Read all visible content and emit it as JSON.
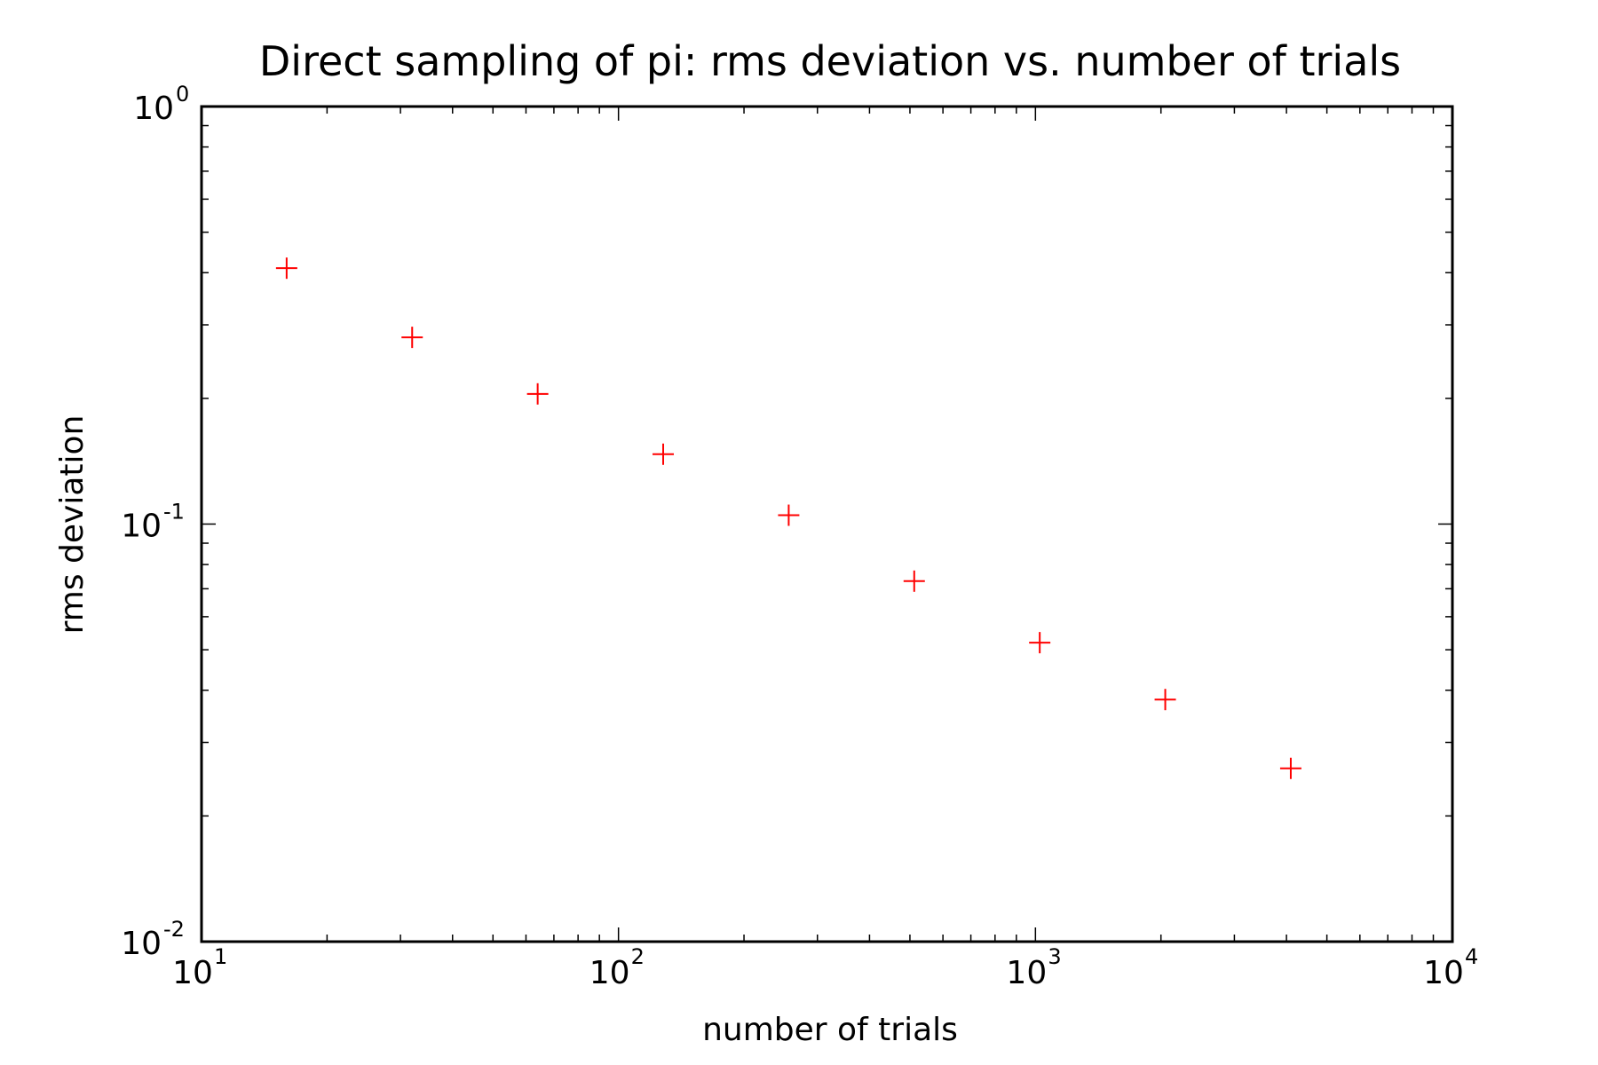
{
  "chart_data": {
    "type": "scatter",
    "title": "Direct sampling of pi: rms deviation vs. number of trials",
    "xlabel": "number of trials",
    "ylabel": "rms deviation",
    "xscale": "log",
    "yscale": "log",
    "xlim": [
      10,
      10000
    ],
    "ylim": [
      0.01,
      1
    ],
    "grid": false,
    "marker": "+",
    "marker_color": "#ff0000",
    "x_ticks": [
      {
        "base": "10",
        "exp": "1",
        "value": 10
      },
      {
        "base": "10",
        "exp": "2",
        "value": 100
      },
      {
        "base": "10",
        "exp": "3",
        "value": 1000
      },
      {
        "base": "10",
        "exp": "4",
        "value": 10000
      }
    ],
    "y_ticks": [
      {
        "base": "10",
        "exp": "-2",
        "value": 0.01
      },
      {
        "base": "10",
        "exp": "-1",
        "value": 0.1
      },
      {
        "base": "10",
        "exp": "0",
        "value": 1
      }
    ],
    "points": [
      {
        "x": 16,
        "y": 0.41
      },
      {
        "x": 32,
        "y": 0.28
      },
      {
        "x": 64,
        "y": 0.205
      },
      {
        "x": 128,
        "y": 0.147
      },
      {
        "x": 256,
        "y": 0.105
      },
      {
        "x": 512,
        "y": 0.073
      },
      {
        "x": 1024,
        "y": 0.052
      },
      {
        "x": 2048,
        "y": 0.038
      },
      {
        "x": 4096,
        "y": 0.026
      }
    ]
  }
}
